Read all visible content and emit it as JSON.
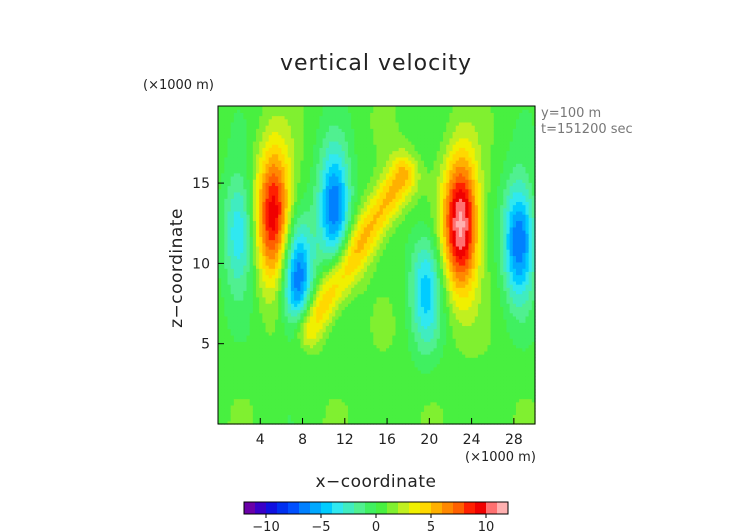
{
  "chart_data": {
    "type": "heatmap",
    "title": "vertical velocity",
    "xlabel": "x−coordinate",
    "ylabel": "z−coordinate",
    "x_unit": "(×1000 m)",
    "y_unit": "(×1000 m)",
    "xlim": [
      0,
      30
    ],
    "ylim": [
      0,
      19.8
    ],
    "x_ticks": [
      4,
      8,
      12,
      16,
      20,
      24,
      28
    ],
    "x_tick_labels": [
      "4",
      "8",
      "12",
      "16",
      "20",
      "24",
      "28"
    ],
    "y_ticks": [
      5,
      10,
      15
    ],
    "y_tick_labels": [
      "5",
      "10",
      "15"
    ],
    "annotations": [
      "y=100 m",
      "t=151200 sec"
    ],
    "colorbar": {
      "range": [
        -12,
        12
      ],
      "step": 1,
      "ticks": [
        -10,
        -5,
        0,
        5,
        10
      ],
      "tick_labels": [
        "−10",
        "−5",
        "0",
        "5",
        "10"
      ],
      "colors": [
        "#6a00a8",
        "#3a00c8",
        "#1010e0",
        "#0030f0",
        "#0050ff",
        "#0080ff",
        "#00a8ff",
        "#00ccff",
        "#30e8f0",
        "#40ecc0",
        "#50f090",
        "#40f060",
        "#48f040",
        "#80f030",
        "#c0f020",
        "#f0f000",
        "#ffd800",
        "#ffb000",
        "#ff8800",
        "#ff6000",
        "#ff2000",
        "#f00000",
        "#ff7070",
        "#ffb0b0"
      ]
    },
    "field_features": [
      {
        "kind": "updraft",
        "x_center": 5.3,
        "z_center": 13.0,
        "peak": 9.5
      },
      {
        "kind": "updraft",
        "x_center": 23.0,
        "z_center": 12.5,
        "peak": 11
      },
      {
        "kind": "updraft_band",
        "x_from": 8.5,
        "z_from": 6.0,
        "x_to": 17.5,
        "z_to": 15.5,
        "peak": 5
      },
      {
        "kind": "downdraft",
        "x_center": 2.0,
        "z_center": 12.0,
        "peak": -5
      },
      {
        "kind": "downdraft",
        "x_center": 11.0,
        "z_center": 13.5,
        "peak": -8
      },
      {
        "kind": "downdraft",
        "x_center": 7.5,
        "z_center": 9.0,
        "peak": -8
      },
      {
        "kind": "downdraft",
        "x_center": 28.5,
        "z_center": 11.5,
        "peak": -8
      },
      {
        "kind": "downdraft",
        "x_center": 19.7,
        "z_center": 8.5,
        "peak": -5
      }
    ]
  }
}
